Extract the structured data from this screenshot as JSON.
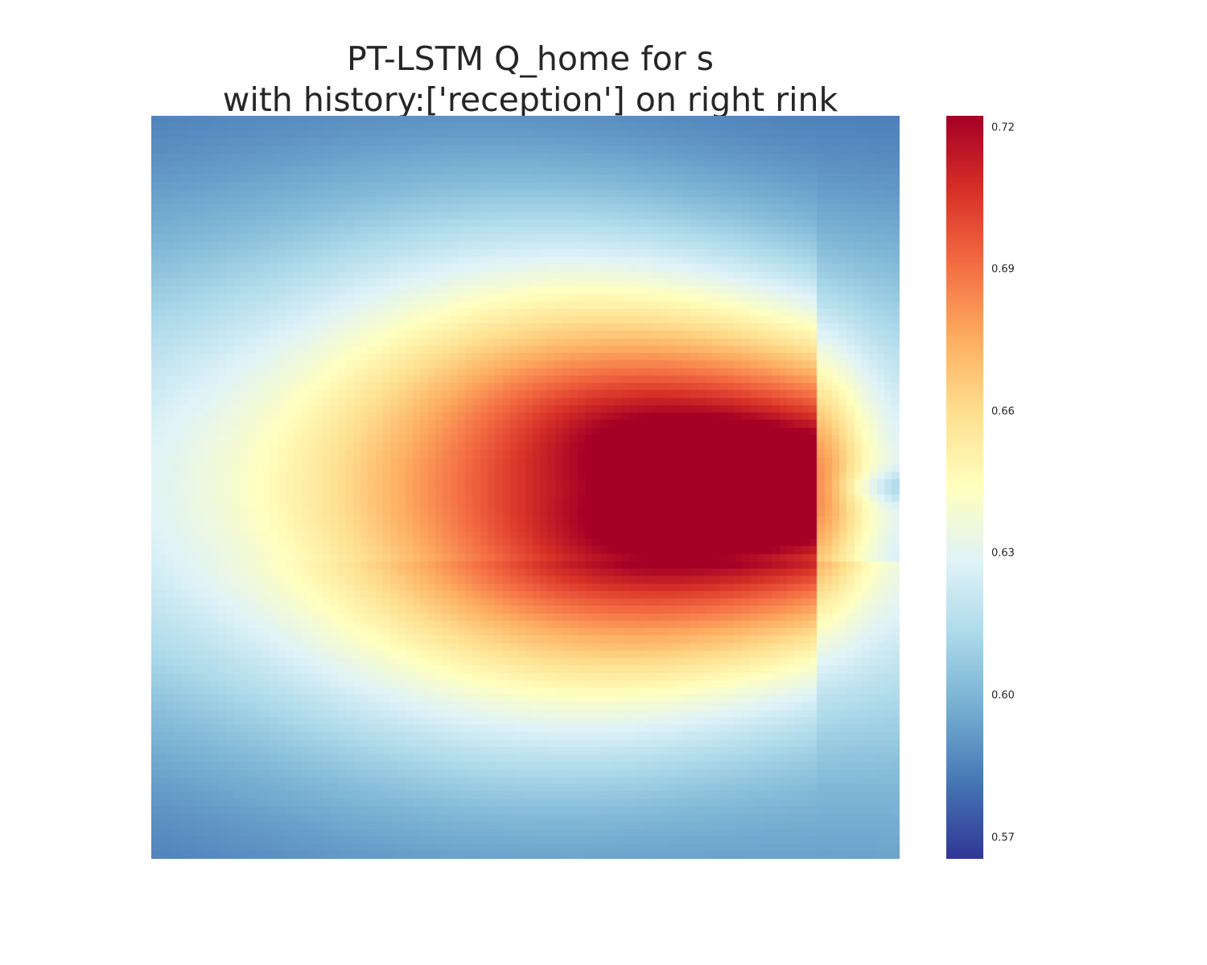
{
  "chart_data": {
    "type": "heatmap",
    "title_lines": [
      "PT-LSTM Q_home for s",
      "with history:['reception'] on right rink"
    ],
    "xlabel": "",
    "ylabel": "",
    "grid": false,
    "colormap": "RdYlBu_r",
    "colormap_stops": [
      "#313695",
      "#4575b4",
      "#74add1",
      "#abd9e9",
      "#e0f3f8",
      "#ffffbf",
      "#fee090",
      "#fdae61",
      "#f46d43",
      "#d73027",
      "#a50026"
    ],
    "value_range": [
      0.5655,
      0.7225
    ],
    "colorbar": {
      "ticks": [
        0.57,
        0.6,
        0.63,
        0.66,
        0.69,
        0.72
      ],
      "tick_labels": [
        "0.57",
        "0.60",
        "0.63",
        "0.66",
        "0.69",
        "0.72"
      ]
    },
    "grid_size": [
      100,
      100
    ],
    "peak_location": [
      88.5,
      50
    ],
    "value_samples": [
      {
        "x": 0,
        "y": 0,
        "value": 0.59
      },
      {
        "x": 99,
        "y": 0,
        "value": 0.568
      },
      {
        "x": 50,
        "y": 0,
        "value": 0.595
      },
      {
        "x": 0,
        "y": 50,
        "value": 0.615
      },
      {
        "x": 99,
        "y": 50,
        "value": 0.605
      },
      {
        "x": 50,
        "y": 50,
        "value": 0.685
      },
      {
        "x": 75,
        "y": 45,
        "value": 0.71
      },
      {
        "x": 88,
        "y": 50,
        "value": 0.72
      },
      {
        "x": 0,
        "y": 85,
        "value": 0.578
      },
      {
        "x": 99,
        "y": 99,
        "value": 0.615
      },
      {
        "x": 50,
        "y": 99,
        "value": 0.6
      }
    ]
  }
}
